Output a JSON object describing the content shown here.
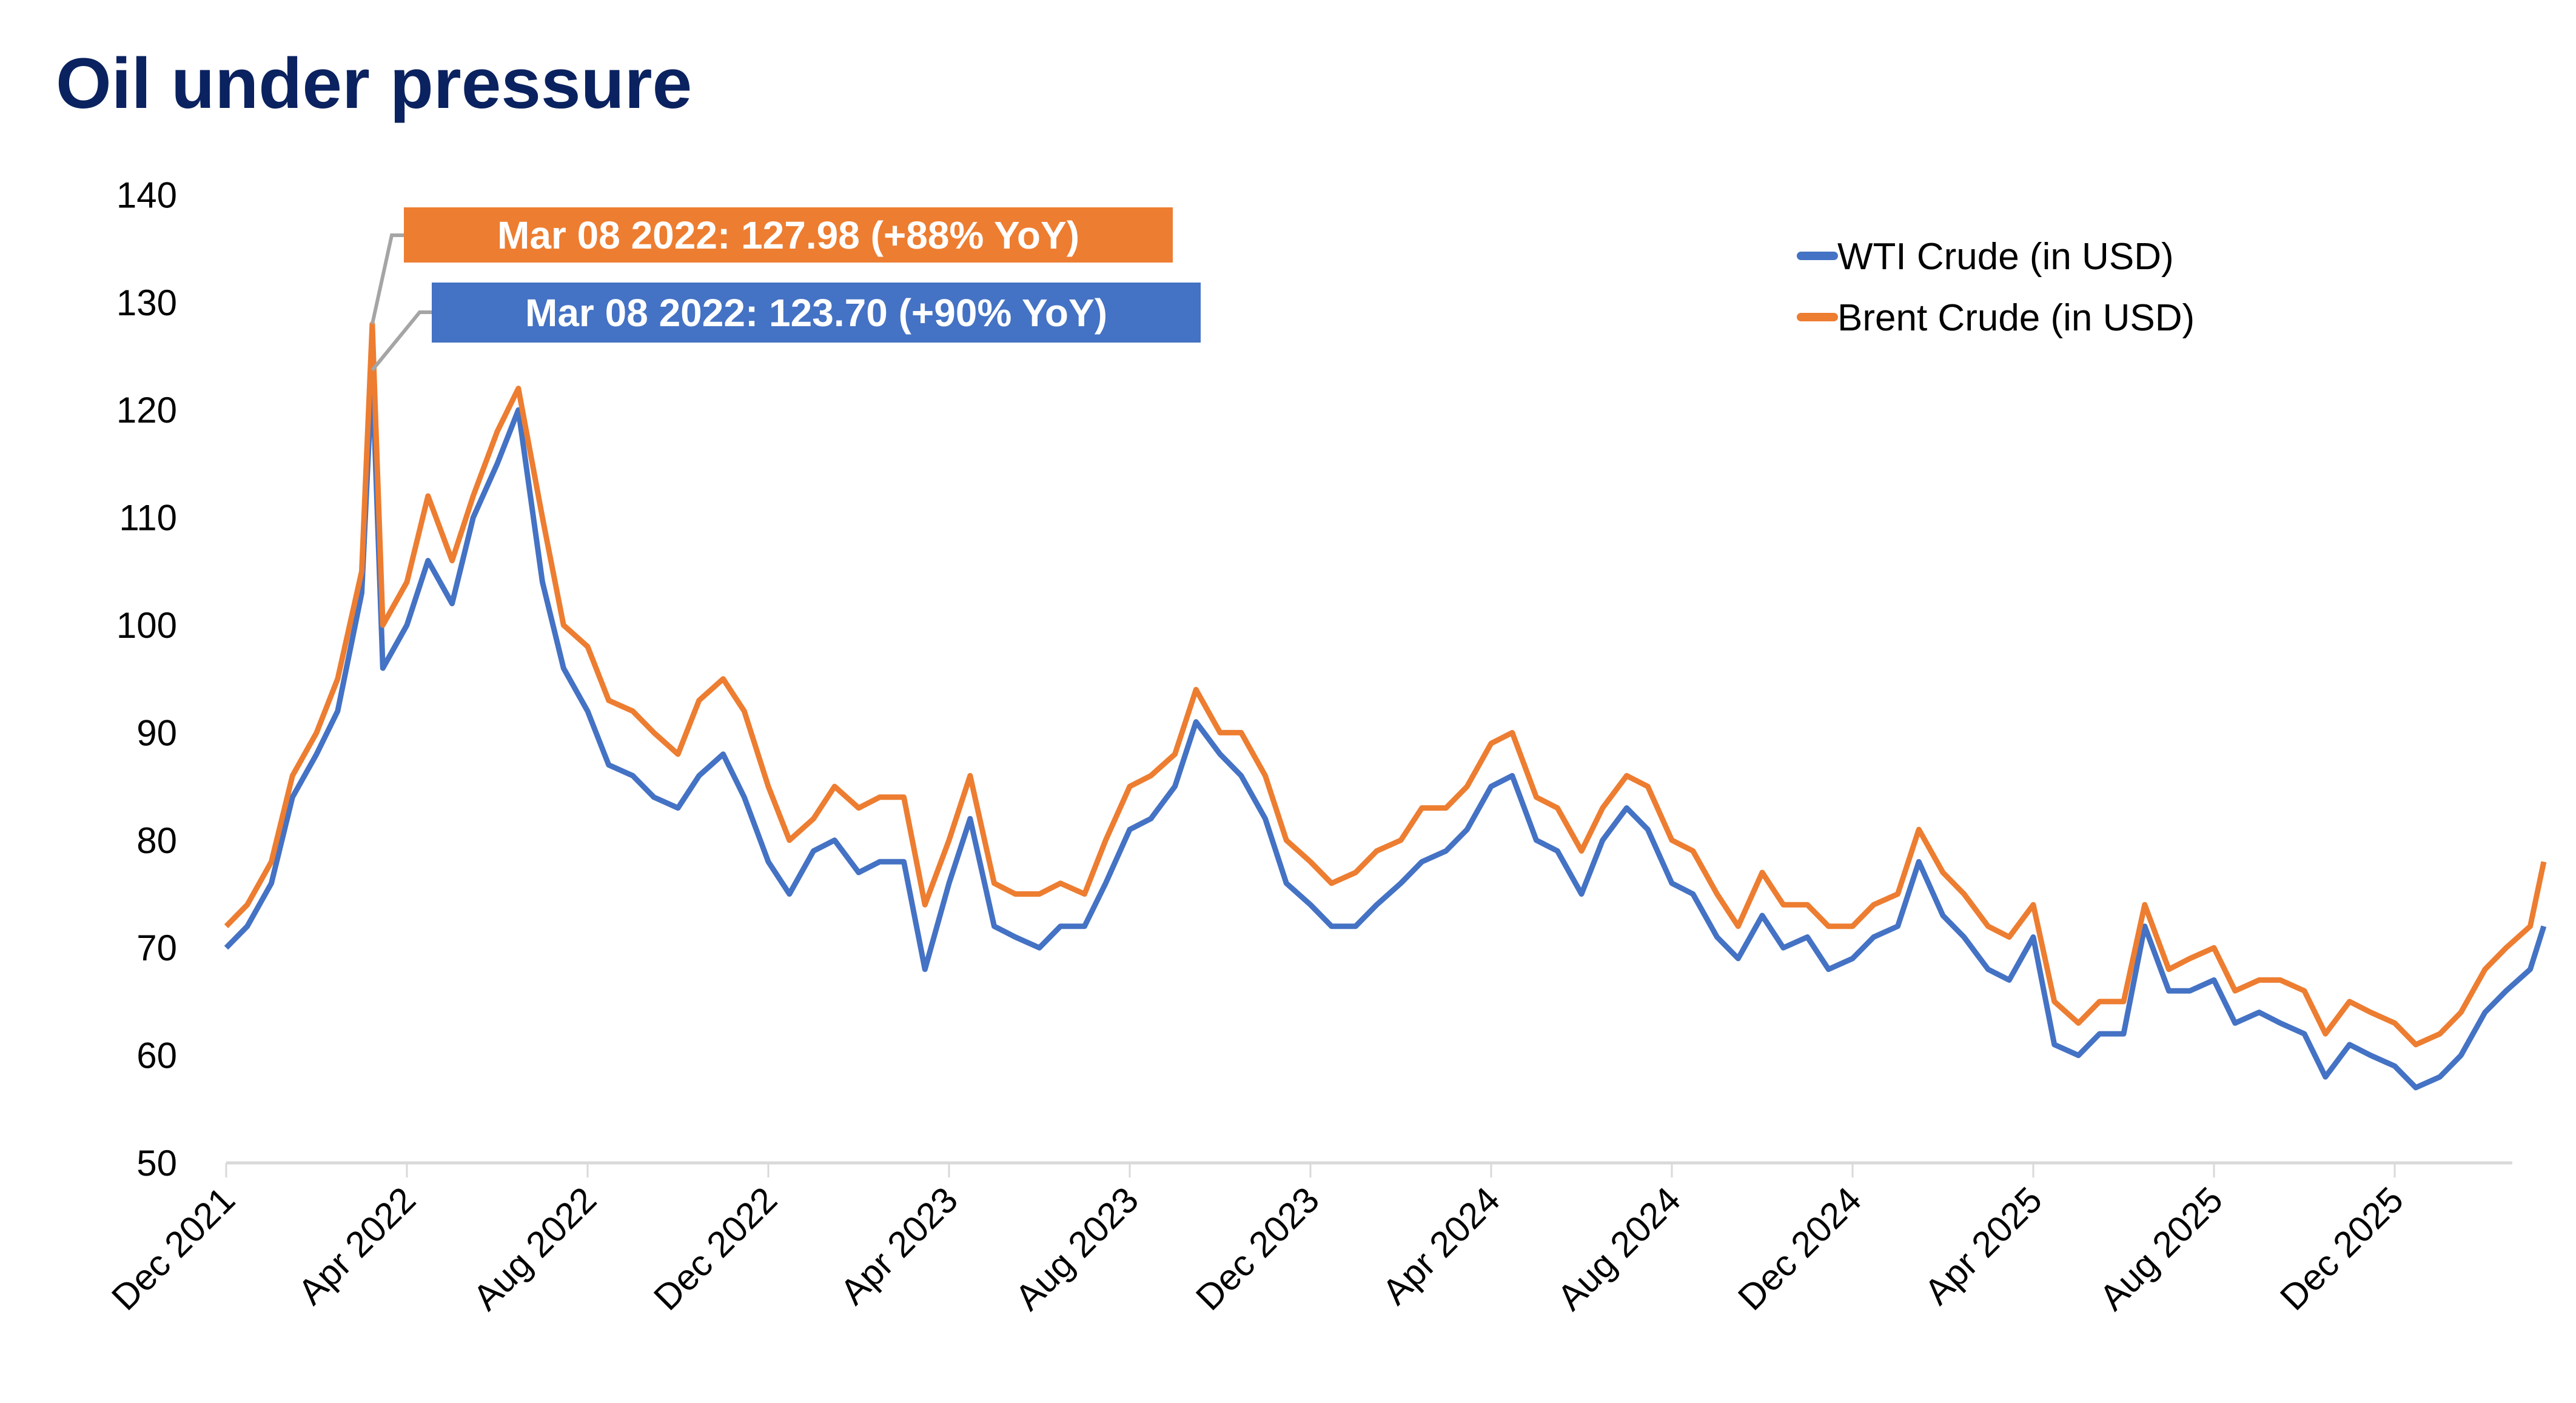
{
  "chart_data": {
    "type": "line",
    "title": "Oil under pressure",
    "xlabel": "",
    "ylabel": "",
    "ylim": [
      50,
      140
    ],
    "yticks": [
      50,
      60,
      70,
      80,
      90,
      100,
      110,
      120,
      130,
      140
    ],
    "xtick_labels": [
      "Dec 2021",
      "Apr 2022",
      "Aug 2022",
      "Dec 2022",
      "Apr 2023",
      "Aug 2023",
      "Dec 2023",
      "Apr 2024",
      "Aug 2024",
      "Dec 2024",
      "Apr 2025",
      "Aug 2025",
      "Dec 2025"
    ],
    "xtick_dates": [
      "2021-12-01",
      "2022-04-01",
      "2022-08-01",
      "2022-12-01",
      "2023-04-01",
      "2023-08-01",
      "2023-12-01",
      "2024-04-01",
      "2024-08-01",
      "2024-12-01",
      "2025-04-01",
      "2025-08-01",
      "2025-12-01"
    ],
    "grid": false,
    "legend_position": "top-right",
    "x": [
      "2021-12-01",
      "2021-12-15",
      "2022-01-01",
      "2022-01-15",
      "2022-02-01",
      "2022-02-15",
      "2022-03-01",
      "2022-03-08",
      "2022-03-15",
      "2022-04-01",
      "2022-04-15",
      "2022-05-01",
      "2022-05-15",
      "2022-06-01",
      "2022-06-15",
      "2022-07-01",
      "2022-07-15",
      "2022-08-01",
      "2022-08-15",
      "2022-09-01",
      "2022-09-15",
      "2022-10-01",
      "2022-10-15",
      "2022-11-01",
      "2022-11-15",
      "2022-12-01",
      "2022-12-15",
      "2023-01-01",
      "2023-01-15",
      "2023-02-01",
      "2023-02-15",
      "2023-03-01",
      "2023-03-15",
      "2023-04-01",
      "2023-04-15",
      "2023-05-01",
      "2023-05-15",
      "2023-06-01",
      "2023-06-15",
      "2023-07-01",
      "2023-07-15",
      "2023-08-01",
      "2023-08-15",
      "2023-09-01",
      "2023-09-15",
      "2023-10-01",
      "2023-10-15",
      "2023-11-01",
      "2023-11-15",
      "2023-12-01",
      "2023-12-15",
      "2024-01-01",
      "2024-01-15",
      "2024-02-01",
      "2024-02-15",
      "2024-03-01",
      "2024-03-15",
      "2024-04-01",
      "2024-04-15",
      "2024-05-01",
      "2024-05-15",
      "2024-06-01",
      "2024-06-15",
      "2024-07-01",
      "2024-07-15",
      "2024-08-01",
      "2024-08-15",
      "2024-09-01",
      "2024-09-15",
      "2024-10-01",
      "2024-10-15",
      "2024-11-01",
      "2024-11-15",
      "2024-12-01",
      "2024-12-15",
      "2025-01-01",
      "2025-01-15",
      "2025-02-01",
      "2025-02-15",
      "2025-03-01",
      "2025-03-15",
      "2025-04-01",
      "2025-04-15",
      "2025-05-01",
      "2025-05-15",
      "2025-06-01",
      "2025-06-15",
      "2025-07-01",
      "2025-07-15",
      "2025-08-01",
      "2025-08-15",
      "2025-09-01",
      "2025-09-15",
      "2025-10-01",
      "2025-10-15",
      "2025-11-01",
      "2025-11-15",
      "2025-12-01",
      "2025-12-15",
      "2026-01-01",
      "2026-01-15",
      "2026-02-01",
      "2026-02-15",
      "2026-03-01",
      "2026-03-10"
    ],
    "series": [
      {
        "name": "WTI Crude (in USD)",
        "color": "#4472C4",
        "values": [
          70,
          72,
          76,
          84,
          88,
          92,
          103,
          123.7,
          96,
          100,
          106,
          102,
          110,
          115,
          120,
          104,
          96,
          92,
          87,
          86,
          84,
          83,
          86,
          88,
          84,
          78,
          75,
          79,
          80,
          77,
          78,
          78,
          68,
          76,
          82,
          72,
          71,
          70,
          72,
          72,
          76,
          81,
          82,
          85,
          91,
          88,
          86,
          82,
          76,
          74,
          72,
          72,
          74,
          76,
          78,
          79,
          81,
          85,
          86,
          80,
          79,
          75,
          80,
          83,
          81,
          76,
          75,
          71,
          69,
          73,
          70,
          71,
          68,
          69,
          71,
          72,
          78,
          73,
          71,
          68,
          67,
          71,
          61,
          60,
          62,
          62,
          72,
          66,
          66,
          67,
          63,
          64,
          63,
          62,
          58,
          61,
          60,
          59,
          57,
          58,
          60,
          64,
          66,
          68,
          72
        ]
      },
      {
        "name": "Brent Crude (in USD)",
        "color": "#ED7D31",
        "values": [
          72,
          74,
          78,
          86,
          90,
          95,
          105,
          127.98,
          100,
          104,
          112,
          106,
          112,
          118,
          122,
          110,
          100,
          98,
          93,
          92,
          90,
          88,
          93,
          95,
          92,
          85,
          80,
          82,
          85,
          83,
          84,
          84,
          74,
          80,
          86,
          76,
          75,
          75,
          76,
          75,
          80,
          85,
          86,
          88,
          94,
          90,
          90,
          86,
          80,
          78,
          76,
          77,
          79,
          80,
          83,
          83,
          85,
          89,
          90,
          84,
          83,
          79,
          83,
          86,
          85,
          80,
          79,
          75,
          72,
          77,
          74,
          74,
          72,
          72,
          74,
          75,
          81,
          77,
          75,
          72,
          71,
          74,
          65,
          63,
          65,
          65,
          74,
          68,
          69,
          70,
          66,
          67,
          67,
          66,
          62,
          65,
          64,
          63,
          61,
          62,
          64,
          68,
          70,
          72,
          78
        ]
      }
    ],
    "annotations": [
      {
        "series": "Brent Crude (in USD)",
        "date": "2022-03-08",
        "value": 127.98,
        "text": "Mar 08 2022: 127.98 (+88% YoY)",
        "color": "#ED7D31"
      },
      {
        "series": "WTI Crude (in USD)",
        "date": "2022-03-08",
        "value": 123.7,
        "text": "Mar 08 2022: 123.70 (+90% YoY)",
        "color": "#4472C4"
      }
    ]
  }
}
